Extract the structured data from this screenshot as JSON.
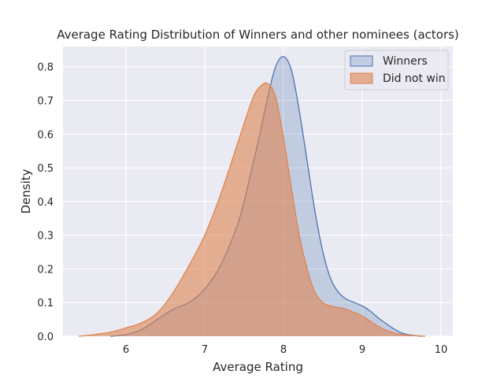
{
  "chart_data": {
    "type": "area",
    "title": "Average Rating Distribution of Winners and other nominees (actors)",
    "xlabel": "Average Rating",
    "ylabel": "Density",
    "xlim": [
      5.2,
      10.15
    ],
    "ylim": [
      0,
      0.86
    ],
    "xticks": [
      6,
      7,
      8,
      9,
      10
    ],
    "yticks": [
      0.0,
      0.1,
      0.2,
      0.3,
      0.4,
      0.5,
      0.6,
      0.7,
      0.8
    ],
    "grid": true,
    "legend_position": "top-right",
    "series": [
      {
        "name": "Winners",
        "color": "#4c72b0",
        "fill_opacity": 0.25,
        "x": [
          5.8,
          6.0,
          6.2,
          6.4,
          6.6,
          6.8,
          7.0,
          7.2,
          7.4,
          7.5,
          7.6,
          7.7,
          7.8,
          7.9,
          8.0,
          8.1,
          8.2,
          8.3,
          8.4,
          8.5,
          8.6,
          8.7,
          8.8,
          8.9,
          9.0,
          9.1,
          9.2,
          9.3,
          9.4,
          9.5,
          9.6,
          9.75
        ],
        "y": [
          0.0,
          0.005,
          0.02,
          0.05,
          0.08,
          0.1,
          0.14,
          0.21,
          0.32,
          0.4,
          0.5,
          0.6,
          0.71,
          0.8,
          0.83,
          0.79,
          0.67,
          0.52,
          0.37,
          0.25,
          0.17,
          0.13,
          0.11,
          0.1,
          0.09,
          0.075,
          0.055,
          0.038,
          0.022,
          0.01,
          0.004,
          0.0
        ]
      },
      {
        "name": "Did not win",
        "color": "#dd8452",
        "fill_opacity": 0.6,
        "x": [
          5.4,
          5.6,
          5.8,
          6.0,
          6.2,
          6.4,
          6.6,
          6.8,
          7.0,
          7.2,
          7.4,
          7.6,
          7.7,
          7.8,
          7.9,
          8.0,
          8.1,
          8.2,
          8.3,
          8.4,
          8.5,
          8.6,
          8.7,
          8.8,
          8.9,
          9.0,
          9.2,
          9.4,
          9.6,
          9.8
        ],
        "y": [
          0.0,
          0.005,
          0.012,
          0.025,
          0.04,
          0.07,
          0.13,
          0.21,
          0.3,
          0.42,
          0.56,
          0.7,
          0.74,
          0.75,
          0.71,
          0.59,
          0.44,
          0.3,
          0.2,
          0.13,
          0.1,
          0.09,
          0.085,
          0.08,
          0.07,
          0.06,
          0.03,
          0.01,
          0.003,
          0.0
        ]
      }
    ]
  }
}
